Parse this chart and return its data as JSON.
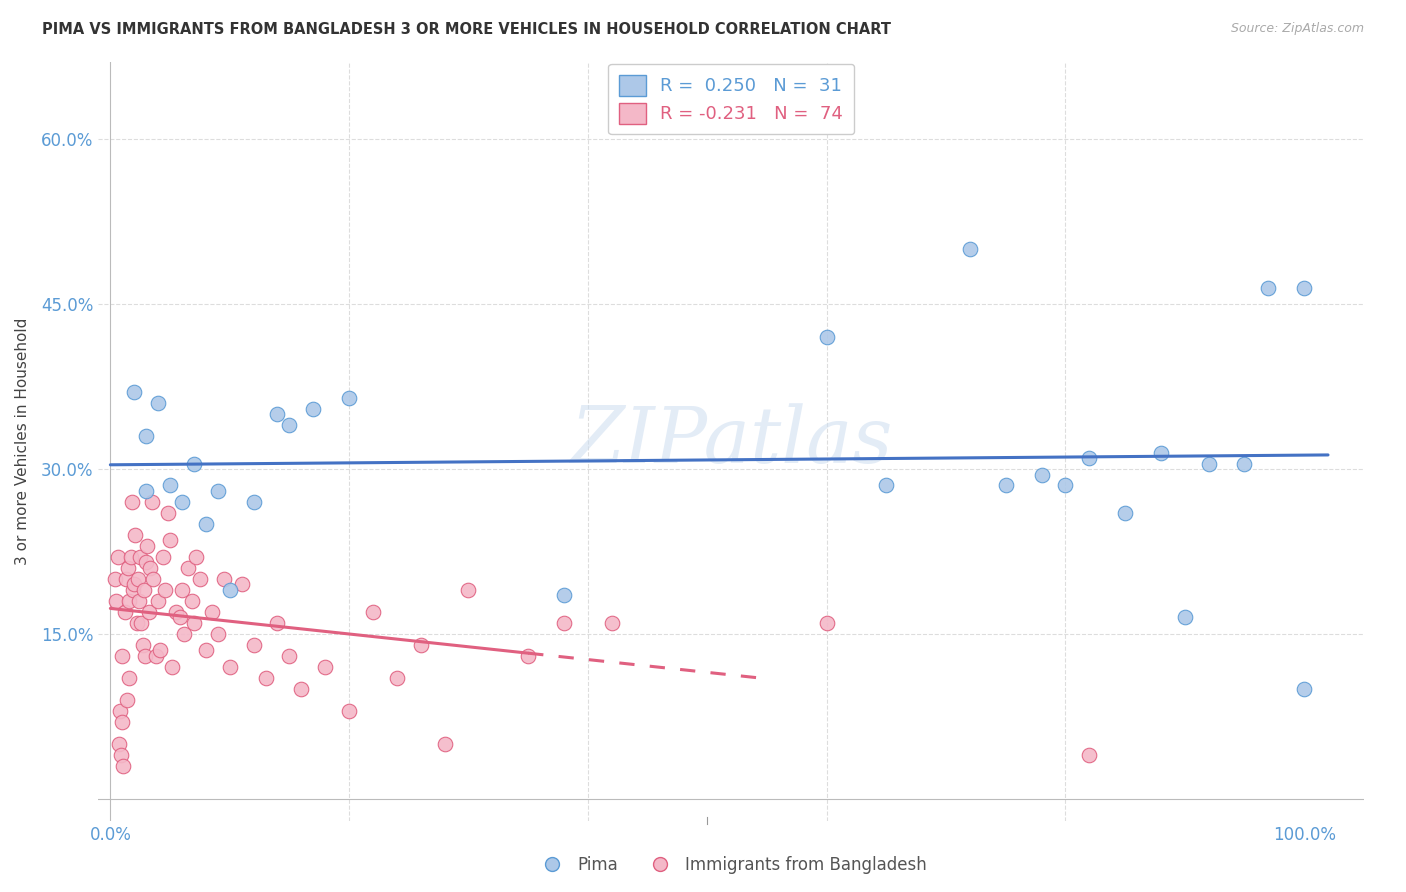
{
  "title": "PIMA VS IMMIGRANTS FROM BANGLADESH 3 OR MORE VEHICLES IN HOUSEHOLD CORRELATION CHART",
  "source": "Source: ZipAtlas.com",
  "ylabel": "3 or more Vehicles in Household",
  "xlim": [
    -0.01,
    1.05
  ],
  "ylim": [
    -0.02,
    0.67
  ],
  "xticks": [
    0.0,
    0.2,
    0.4,
    0.6,
    0.8,
    1.0
  ],
  "xticklabels": [
    "0.0%",
    "",
    "",
    "",
    "",
    "100.0%"
  ],
  "yticks": [
    0.0,
    0.15,
    0.3,
    0.45,
    0.6
  ],
  "yticklabels": [
    "",
    "15.0%",
    "30.0%",
    "45.0%",
    "60.0%"
  ],
  "grid_color": "#dddddd",
  "background_color": "#ffffff",
  "watermark": "ZIPatlas",
  "pima_color": "#adc8e8",
  "pima_edge_color": "#5b9bd5",
  "pima_line_color": "#4472c4",
  "pima_x": [
    0.02,
    0.03,
    0.03,
    0.04,
    0.05,
    0.06,
    0.07,
    0.08,
    0.09,
    0.1,
    0.12,
    0.14,
    0.15,
    0.17,
    0.2,
    0.38,
    0.6,
    0.65,
    0.72,
    0.75,
    0.78,
    0.8,
    0.82,
    0.85,
    0.88,
    0.9,
    0.92,
    0.95,
    0.97,
    1.0,
    1.0
  ],
  "pima_y": [
    0.37,
    0.33,
    0.28,
    0.36,
    0.285,
    0.27,
    0.305,
    0.25,
    0.28,
    0.19,
    0.27,
    0.35,
    0.34,
    0.355,
    0.365,
    0.185,
    0.42,
    0.285,
    0.5,
    0.285,
    0.295,
    0.285,
    0.31,
    0.26,
    0.315,
    0.165,
    0.305,
    0.305,
    0.465,
    0.465,
    0.1
  ],
  "bangladesh_color": "#f4b8c8",
  "bangladesh_edge_color": "#e06080",
  "bangladesh_line_color": "#e06080",
  "bangladesh_x": [
    0.004,
    0.005,
    0.006,
    0.007,
    0.008,
    0.009,
    0.01,
    0.01,
    0.011,
    0.012,
    0.013,
    0.014,
    0.015,
    0.016,
    0.016,
    0.017,
    0.018,
    0.019,
    0.02,
    0.021,
    0.022,
    0.023,
    0.024,
    0.025,
    0.026,
    0.027,
    0.028,
    0.029,
    0.03,
    0.031,
    0.032,
    0.033,
    0.035,
    0.036,
    0.038,
    0.04,
    0.042,
    0.044,
    0.046,
    0.048,
    0.05,
    0.052,
    0.055,
    0.058,
    0.06,
    0.062,
    0.065,
    0.068,
    0.07,
    0.072,
    0.075,
    0.08,
    0.085,
    0.09,
    0.095,
    0.1,
    0.11,
    0.12,
    0.13,
    0.14,
    0.15,
    0.16,
    0.18,
    0.2,
    0.22,
    0.24,
    0.26,
    0.28,
    0.3,
    0.35,
    0.38,
    0.42,
    0.6,
    0.82
  ],
  "bangladesh_y": [
    0.2,
    0.18,
    0.22,
    0.05,
    0.08,
    0.04,
    0.13,
    0.07,
    0.03,
    0.17,
    0.2,
    0.09,
    0.21,
    0.18,
    0.11,
    0.22,
    0.27,
    0.19,
    0.195,
    0.24,
    0.16,
    0.2,
    0.18,
    0.22,
    0.16,
    0.14,
    0.19,
    0.13,
    0.215,
    0.23,
    0.17,
    0.21,
    0.27,
    0.2,
    0.13,
    0.18,
    0.135,
    0.22,
    0.19,
    0.26,
    0.235,
    0.12,
    0.17,
    0.165,
    0.19,
    0.15,
    0.21,
    0.18,
    0.16,
    0.22,
    0.2,
    0.135,
    0.17,
    0.15,
    0.2,
    0.12,
    0.195,
    0.14,
    0.11,
    0.16,
    0.13,
    0.1,
    0.12,
    0.08,
    0.17,
    0.11,
    0.14,
    0.05,
    0.19,
    0.13,
    0.16,
    0.16,
    0.16,
    0.04
  ],
  "legend_pima_label": "R =  0.250   N =  31",
  "legend_bangladesh_label": "R = -0.231   N =  74",
  "legend_pima_color": "#adc8e8",
  "legend_pima_edge": "#5b9bd5",
  "legend_bangladesh_color": "#f4b8c8",
  "legend_bangladesh_edge": "#e06080",
  "bottom_legend_pima": "Pima",
  "bottom_legend_bangladesh": "Immigrants from Bangladesh"
}
